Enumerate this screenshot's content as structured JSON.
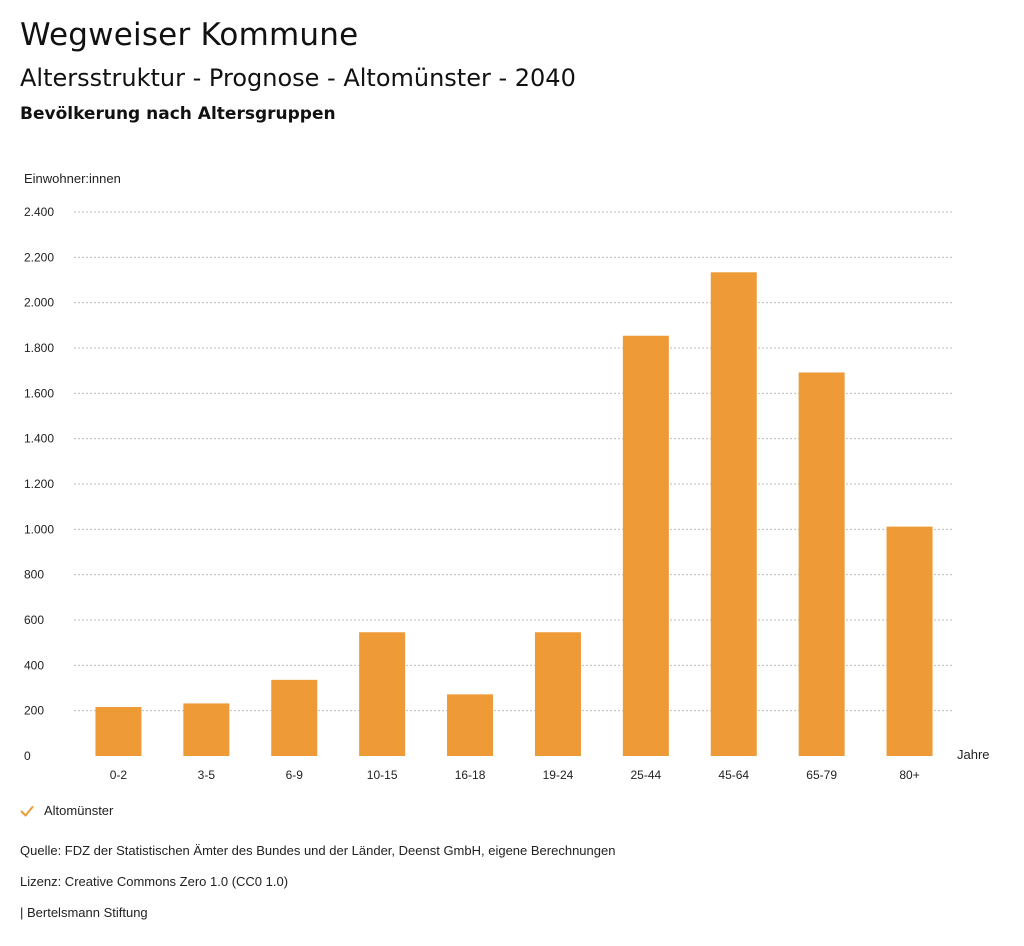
{
  "title": "Wegweiser Kommune",
  "subtitle": "Altersstruktur - Prognose - Altomünster - 2040",
  "chart_heading": "Bevölkerung nach Altersgruppen",
  "footer": {
    "source": "Quelle: FDZ der Statistischen Ämter des Bundes und der Länder, Deenst GmbH, eigene Berechnungen",
    "license": "Lizenz: Creative Commons Zero 1.0 (CC0 1.0)",
    "publisher": "| Bertelsmann Stiftung"
  },
  "chart_data": {
    "type": "bar",
    "ylabel": "Einwohner:innen",
    "xlabel": "Jahre",
    "categories": [
      "0-2",
      "3-5",
      "6-9",
      "10-15",
      "16-18",
      "19-24",
      "25-44",
      "45-64",
      "65-79",
      "80+"
    ],
    "series": [
      {
        "name": "Altomünster",
        "color": "#ed9a37",
        "values": [
          216,
          232,
          336,
          546,
          272,
          546,
          1854,
          2134,
          1692,
          1012
        ]
      }
    ],
    "ylim": [
      0,
      2400
    ],
    "yticks": [
      0,
      200,
      400,
      600,
      800,
      1000,
      1200,
      1400,
      1600,
      1800,
      2000,
      2200,
      2400
    ],
    "ytick_labels": [
      "0",
      "200",
      "400",
      "600",
      "800",
      "1.000",
      "1.200",
      "1.400",
      "1.600",
      "1.800",
      "2.000",
      "2.200",
      "2.400"
    ],
    "grid": true,
    "legend_position": "bottom-left"
  }
}
